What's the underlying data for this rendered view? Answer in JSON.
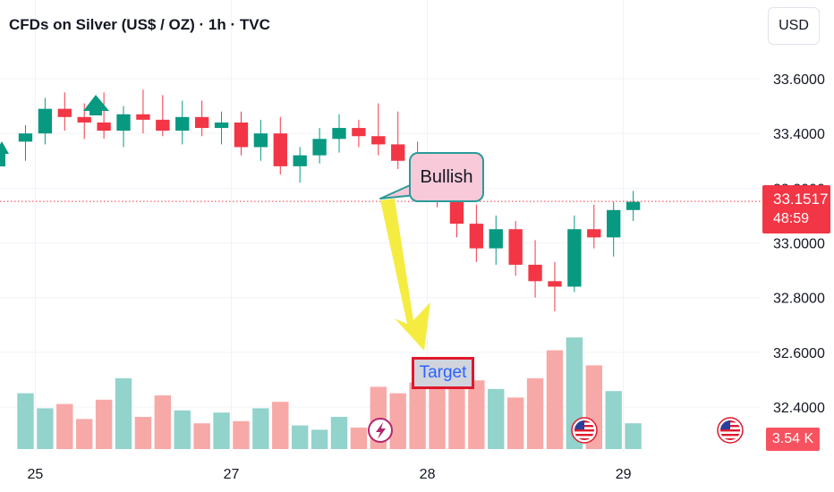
{
  "header": {
    "title": "CFDs on Silver (US$ / OZ) · 1h · TVC",
    "currency": "USD"
  },
  "last_price": {
    "value": "33.1517",
    "countdown": "48:59",
    "color": "#f23645"
  },
  "volume_badge": "3.54 K",
  "annotations": {
    "bullish": "Bullish",
    "target": "Target"
  },
  "colors": {
    "up": "#089981",
    "down": "#f23645",
    "up_volume": "#92d3cc",
    "down_volume": "#f7a9a7",
    "grid": "#f0f3fa",
    "arrow": "#f5ec42",
    "callout_fill": "#f8c9d8",
    "callout_border": "#2a9a9a"
  },
  "icons": [
    "lightning-event-icon",
    "us-flag-event-icon",
    "us-flag-event-icon"
  ],
  "chart_data": {
    "type": "candlestick",
    "title": "CFDs on Silver (US$ / OZ) · 1h · TVC",
    "y_ticks": [
      "33.6000",
      "33.4000",
      "33.2000",
      "33.0000",
      "32.8000",
      "32.6000",
      "32.4000"
    ],
    "y_tick_values": [
      33.6,
      33.4,
      33.2,
      33.0,
      32.8,
      32.6,
      32.4
    ],
    "ylim": [
      32.3,
      33.75
    ],
    "x_ticks": [
      "25",
      "27",
      "28",
      "29"
    ],
    "x_tick_positions": [
      0.5,
      10.5,
      20.5,
      30.5
    ],
    "xlim": [
      -1.3,
      37.5
    ],
    "grid": true,
    "candles": [
      {
        "o": 33.37,
        "h": 33.43,
        "l": 33.3,
        "c": 33.4,
        "v": 2.6
      },
      {
        "o": 33.4,
        "h": 33.53,
        "l": 33.36,
        "c": 33.49,
        "v": 1.9
      },
      {
        "o": 33.49,
        "h": 33.55,
        "l": 33.41,
        "c": 33.46,
        "v": 2.1
      },
      {
        "o": 33.46,
        "h": 33.51,
        "l": 33.38,
        "c": 33.44,
        "v": 1.4
      },
      {
        "o": 33.44,
        "h": 33.55,
        "l": 33.38,
        "c": 33.41,
        "v": 2.3
      },
      {
        "o": 33.41,
        "h": 33.5,
        "l": 33.35,
        "c": 33.47,
        "v": 3.3
      },
      {
        "o": 33.47,
        "h": 33.56,
        "l": 33.4,
        "c": 33.45,
        "v": 1.5
      },
      {
        "o": 33.45,
        "h": 33.54,
        "l": 33.39,
        "c": 33.41,
        "v": 2.5
      },
      {
        "o": 33.41,
        "h": 33.52,
        "l": 33.36,
        "c": 33.46,
        "v": 1.8
      },
      {
        "o": 33.46,
        "h": 33.52,
        "l": 33.39,
        "c": 33.42,
        "v": 1.2
      },
      {
        "o": 33.42,
        "h": 33.48,
        "l": 33.36,
        "c": 33.44,
        "v": 1.7
      },
      {
        "o": 33.44,
        "h": 33.48,
        "l": 33.32,
        "c": 33.35,
        "v": 1.3
      },
      {
        "o": 33.35,
        "h": 33.45,
        "l": 33.3,
        "c": 33.4,
        "v": 1.9
      },
      {
        "o": 33.4,
        "h": 33.46,
        "l": 33.25,
        "c": 33.28,
        "v": 2.2
      },
      {
        "o": 33.28,
        "h": 33.35,
        "l": 33.22,
        "c": 33.32,
        "v": 1.1
      },
      {
        "o": 33.32,
        "h": 33.42,
        "l": 33.29,
        "c": 33.38,
        "v": 0.9
      },
      {
        "o": 33.38,
        "h": 33.47,
        "l": 33.33,
        "c": 33.42,
        "v": 1.5
      },
      {
        "o": 33.42,
        "h": 33.45,
        "l": 33.35,
        "c": 33.39,
        "v": 1.0
      },
      {
        "o": 33.39,
        "h": 33.51,
        "l": 33.32,
        "c": 33.36,
        "v": 2.9
      },
      {
        "o": 33.36,
        "h": 33.48,
        "l": 33.27,
        "c": 33.3,
        "v": 2.6
      },
      {
        "o": 33.3,
        "h": 33.37,
        "l": 33.22,
        "c": 33.27,
        "v": 3.1
      },
      {
        "o": 33.27,
        "h": 33.3,
        "l": 33.13,
        "c": 33.16,
        "v": 3.4
      },
      {
        "o": 33.16,
        "h": 33.2,
        "l": 33.02,
        "c": 33.07,
        "v": 3.6
      },
      {
        "o": 33.07,
        "h": 33.14,
        "l": 32.93,
        "c": 32.98,
        "v": 3.2
      },
      {
        "o": 32.98,
        "h": 33.1,
        "l": 32.92,
        "c": 33.05,
        "v": 2.8
      },
      {
        "o": 33.05,
        "h": 33.08,
        "l": 32.88,
        "c": 32.92,
        "v": 2.4
      },
      {
        "o": 32.92,
        "h": 33.01,
        "l": 32.8,
        "c": 32.86,
        "v": 3.3
      },
      {
        "o": 32.86,
        "h": 32.93,
        "l": 32.75,
        "c": 32.84,
        "v": 4.6
      },
      {
        "o": 32.84,
        "h": 33.1,
        "l": 32.82,
        "c": 33.05,
        "v": 5.2
      },
      {
        "o": 33.05,
        "h": 33.14,
        "l": 32.98,
        "c": 33.02,
        "v": 3.9
      },
      {
        "o": 33.02,
        "h": 33.15,
        "l": 32.95,
        "c": 33.12,
        "v": 2.7
      },
      {
        "o": 33.12,
        "h": 33.19,
        "l": 33.08,
        "c": 33.15,
        "v": 1.2
      }
    ]
  }
}
